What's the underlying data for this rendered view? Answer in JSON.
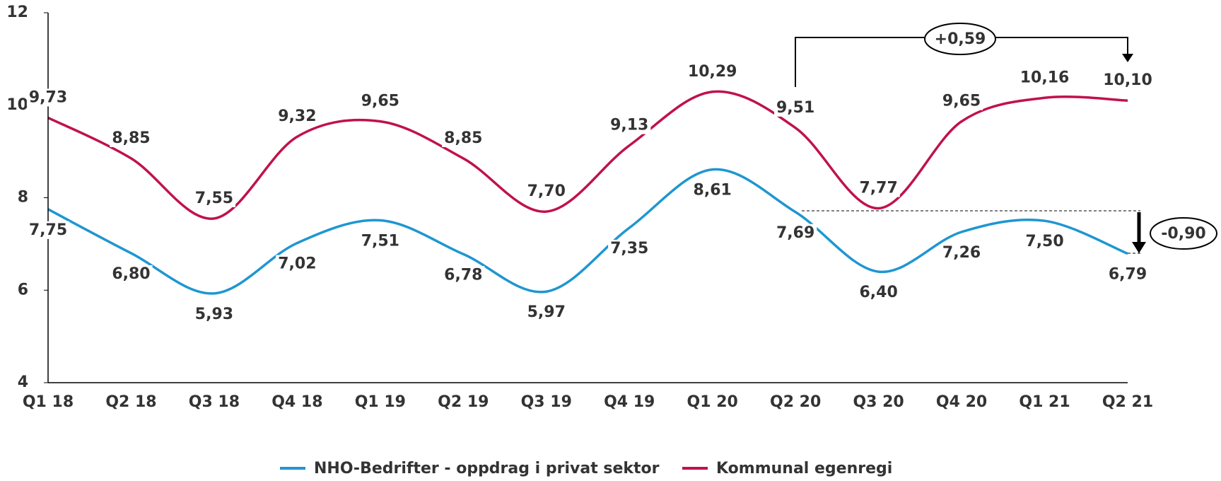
{
  "chart_data": {
    "type": "line",
    "categories": [
      "Q1 18",
      "Q2 18",
      "Q3 18",
      "Q4 18",
      "Q1 19",
      "Q2 19",
      "Q3 19",
      "Q4 19",
      "Q1 20",
      "Q2 20",
      "Q3 20",
      "Q4 20",
      "Q1 21",
      "Q2 21"
    ],
    "series": [
      {
        "name": "NHO-Bedrifter - oppdrag i privat sektor",
        "color": "#1e96d2",
        "values": [
          7.75,
          6.8,
          5.93,
          7.02,
          7.51,
          6.78,
          5.97,
          7.35,
          8.61,
          7.69,
          6.4,
          7.26,
          7.5,
          6.79
        ],
        "value_labels": [
          "7,75",
          "6,80",
          "5,93",
          "7,02",
          "7,51",
          "6,78",
          "5,97",
          "7,35",
          "8,61",
          "7,69",
          "6,40",
          "7,26",
          "7,50",
          "6,79"
        ]
      },
      {
        "name": "Kommunal egenregi",
        "color": "#c0124a",
        "values": [
          9.73,
          8.85,
          7.55,
          9.32,
          9.65,
          8.85,
          7.7,
          9.13,
          10.29,
          9.51,
          7.77,
          9.65,
          10.16,
          10.1
        ],
        "value_labels": [
          "9,73",
          "8,85",
          "7,55",
          "9,32",
          "9,65",
          "8,85",
          "7,70",
          "9,13",
          "10,29",
          "9,51",
          "7,77",
          "9,65",
          "10,16",
          "10,10"
        ]
      }
    ],
    "ylim": [
      4,
      12
    ],
    "yticks": [
      4,
      6,
      8,
      10,
      12
    ],
    "grid": false,
    "annotations": [
      "+0,59",
      "-0,90"
    ]
  }
}
